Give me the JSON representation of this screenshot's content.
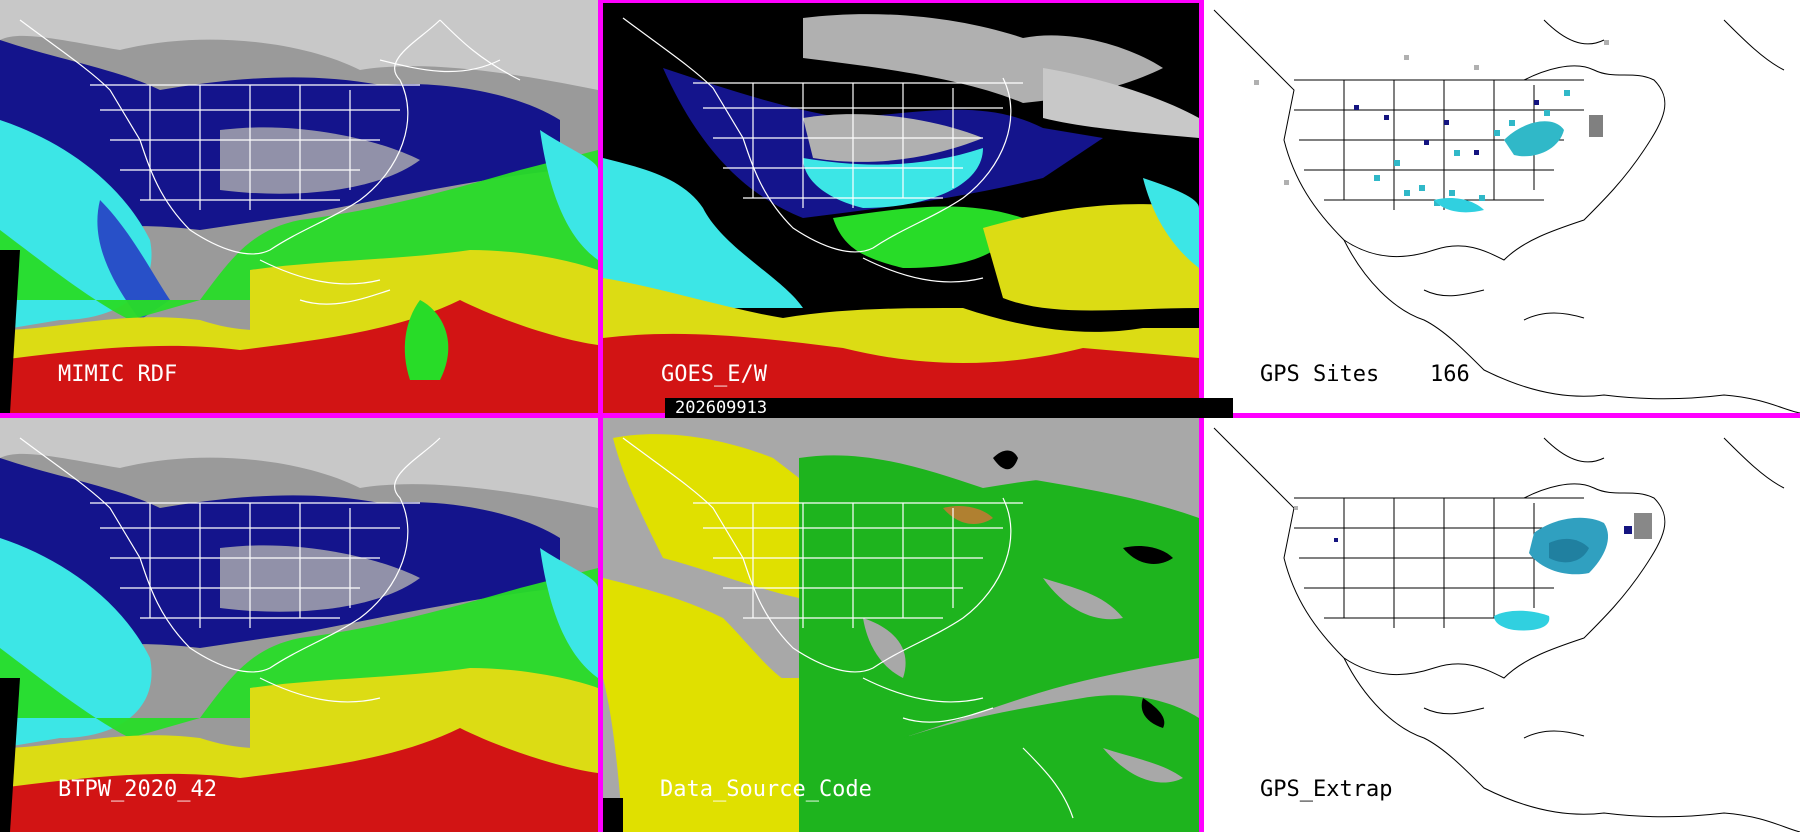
{
  "panels": {
    "top_left": {
      "label": "MIMIC RDF"
    },
    "top_middle": {
      "label": "GOES_E/W"
    },
    "top_right": {
      "label": "GPS Sites",
      "count": "166"
    },
    "bottom_left": {
      "label": "BTPW_2020_42"
    },
    "bottom_middle": {
      "label": "Data_Source_Code"
    },
    "bottom_right": {
      "label": "GPS_Extrap"
    }
  },
  "timestamp": "202609913",
  "colors": {
    "divider": "#ff00ff",
    "pw_gray": "#b4b4b4",
    "pw_navy": "#14148c",
    "pw_blue": "#2850c8",
    "pw_cyan": "#3ce6e6",
    "pw_green": "#28dc28",
    "pw_yellow": "#dcdc14",
    "pw_red": "#d21414",
    "src_gray": "#a8a8a8",
    "src_yellow": "#e0e000",
    "src_green": "#1eb41e",
    "gps_cyan": "#30d0e0"
  }
}
